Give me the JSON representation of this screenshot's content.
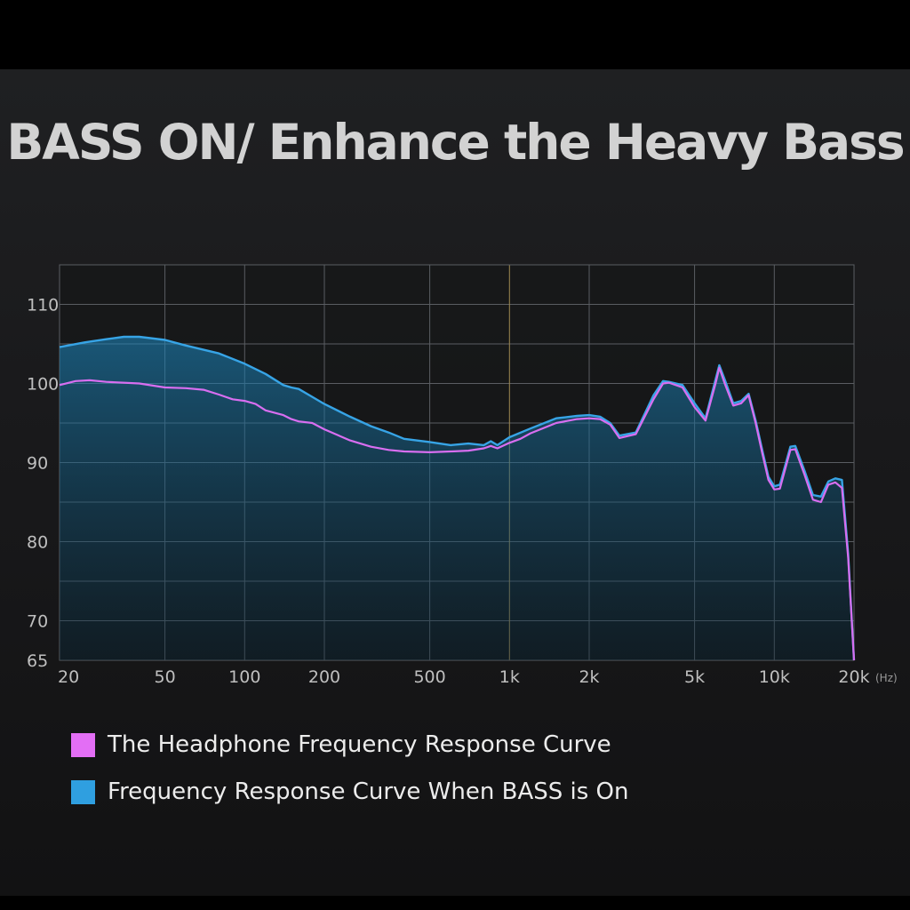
{
  "title": "BASS ON/ Enhance the Heavy Bass",
  "colors": {
    "headphone": "#d86ef0",
    "bass_on": "#37a4e6",
    "fill": "#1c8ac4",
    "grid": "#5a5d62",
    "marker": "#a08a52"
  },
  "chart_data": {
    "type": "area",
    "title": "BASS ON/ Enhance the Heavy Bass",
    "xlabel": "",
    "ylabel": "",
    "x_scale": "log",
    "x_unit": "(Hz)",
    "xlim": [
      20,
      20000
    ],
    "ylim": [
      65,
      115
    ],
    "x_ticks": [
      {
        "value": 20,
        "label": "20"
      },
      {
        "value": 50,
        "label": "50"
      },
      {
        "value": 100,
        "label": "100"
      },
      {
        "value": 200,
        "label": "200"
      },
      {
        "value": 500,
        "label": "500"
      },
      {
        "value": 1000,
        "label": "1k"
      },
      {
        "value": 2000,
        "label": "2k"
      },
      {
        "value": 5000,
        "label": "5k"
      },
      {
        "value": 10000,
        "label": "10k"
      },
      {
        "value": 20000,
        "label": "20k"
      }
    ],
    "y_ticks": [
      {
        "value": 110,
        "label": "110"
      },
      {
        "value": 100,
        "label": "100"
      },
      {
        "value": 90,
        "label": "90"
      },
      {
        "value": 80,
        "label": "80"
      },
      {
        "value": 70,
        "label": "70"
      },
      {
        "value": 65,
        "label": "65"
      }
    ],
    "grid": true,
    "legend_position": "bottom-left",
    "series": [
      {
        "name": "The Headphone Frequency Response Curve",
        "points": [
          [
            20,
            99.8
          ],
          [
            23,
            100.3
          ],
          [
            26,
            100.4
          ],
          [
            30,
            100.2
          ],
          [
            40,
            100.0
          ],
          [
            50,
            99.5
          ],
          [
            60,
            99.4
          ],
          [
            70,
            99.2
          ],
          [
            80,
            98.6
          ],
          [
            90,
            98.0
          ],
          [
            100,
            97.8
          ],
          [
            110,
            97.4
          ],
          [
            120,
            96.6
          ],
          [
            140,
            96.0
          ],
          [
            150,
            95.5
          ],
          [
            160,
            95.2
          ],
          [
            180,
            95.0
          ],
          [
            200,
            94.2
          ],
          [
            250,
            92.8
          ],
          [
            300,
            92.0
          ],
          [
            350,
            91.6
          ],
          [
            400,
            91.4
          ],
          [
            500,
            91.3
          ],
          [
            600,
            91.4
          ],
          [
            700,
            91.5
          ],
          [
            800,
            91.8
          ],
          [
            850,
            92.1
          ],
          [
            900,
            91.8
          ],
          [
            1000,
            92.5
          ],
          [
            1100,
            93.0
          ],
          [
            1200,
            93.7
          ],
          [
            1500,
            95.0
          ],
          [
            1800,
            95.5
          ],
          [
            2000,
            95.6
          ],
          [
            2200,
            95.5
          ],
          [
            2400,
            94.8
          ],
          [
            2600,
            93.1
          ],
          [
            3000,
            93.6
          ],
          [
            3500,
            98.0
          ],
          [
            3800,
            100.0
          ],
          [
            4000,
            100.1
          ],
          [
            4500,
            99.5
          ],
          [
            5000,
            97.0
          ],
          [
            5500,
            95.3
          ],
          [
            6000,
            100.0
          ],
          [
            6200,
            102.0
          ],
          [
            6500,
            100.0
          ],
          [
            7000,
            97.2
          ],
          [
            7500,
            97.5
          ],
          [
            8000,
            98.5
          ],
          [
            8500,
            95.0
          ],
          [
            9000,
            91.2
          ],
          [
            9500,
            87.8
          ],
          [
            10000,
            86.6
          ],
          [
            10500,
            86.7
          ],
          [
            11500,
            91.6
          ],
          [
            12000,
            91.7
          ],
          [
            13000,
            88.5
          ],
          [
            14000,
            85.3
          ],
          [
            15000,
            85.0
          ],
          [
            16000,
            87.2
          ],
          [
            17000,
            87.5
          ],
          [
            18000,
            86.8
          ],
          [
            19000,
            78.0
          ],
          [
            20000,
            65.0
          ]
        ]
      },
      {
        "name": "Frequency Response Curve When BASS is On",
        "points": [
          [
            20,
            104.6
          ],
          [
            25,
            105.2
          ],
          [
            30,
            105.6
          ],
          [
            35,
            105.9
          ],
          [
            40,
            105.9
          ],
          [
            50,
            105.5
          ],
          [
            60,
            104.8
          ],
          [
            80,
            103.8
          ],
          [
            100,
            102.5
          ],
          [
            120,
            101.2
          ],
          [
            140,
            99.8
          ],
          [
            150,
            99.5
          ],
          [
            160,
            99.3
          ],
          [
            180,
            98.3
          ],
          [
            200,
            97.4
          ],
          [
            250,
            95.8
          ],
          [
            300,
            94.6
          ],
          [
            350,
            93.8
          ],
          [
            400,
            93.0
          ],
          [
            500,
            92.6
          ],
          [
            600,
            92.2
          ],
          [
            700,
            92.4
          ],
          [
            800,
            92.2
          ],
          [
            850,
            92.7
          ],
          [
            900,
            92.2
          ],
          [
            1000,
            93.2
          ],
          [
            1200,
            94.3
          ],
          [
            1500,
            95.6
          ],
          [
            1800,
            95.9
          ],
          [
            2000,
            96.0
          ],
          [
            2200,
            95.8
          ],
          [
            2400,
            95.0
          ],
          [
            2600,
            93.4
          ],
          [
            3000,
            93.8
          ],
          [
            3500,
            98.5
          ],
          [
            3800,
            100.3
          ],
          [
            4000,
            100.2
          ],
          [
            4500,
            99.8
          ],
          [
            5000,
            97.5
          ],
          [
            5500,
            95.6
          ],
          [
            6000,
            100.5
          ],
          [
            6200,
            102.3
          ],
          [
            6500,
            100.5
          ],
          [
            7000,
            97.5
          ],
          [
            7500,
            97.8
          ],
          [
            8000,
            98.7
          ],
          [
            8500,
            95.3
          ],
          [
            9000,
            91.6
          ],
          [
            9500,
            88.2
          ],
          [
            10000,
            87.0
          ],
          [
            10500,
            87.2
          ],
          [
            11500,
            92.0
          ],
          [
            12000,
            92.1
          ],
          [
            13000,
            89.0
          ],
          [
            14000,
            85.9
          ],
          [
            15000,
            85.7
          ],
          [
            16000,
            87.6
          ],
          [
            17000,
            88.0
          ],
          [
            18000,
            87.8
          ],
          [
            19000,
            78.5
          ],
          [
            20000,
            65.0
          ]
        ]
      }
    ]
  },
  "legend": [
    {
      "label": "The Headphone Frequency Response Curve",
      "color": "#e36ef5"
    },
    {
      "label": "Frequency Response Curve When BASS is On",
      "color": "#2f9fe0"
    }
  ]
}
